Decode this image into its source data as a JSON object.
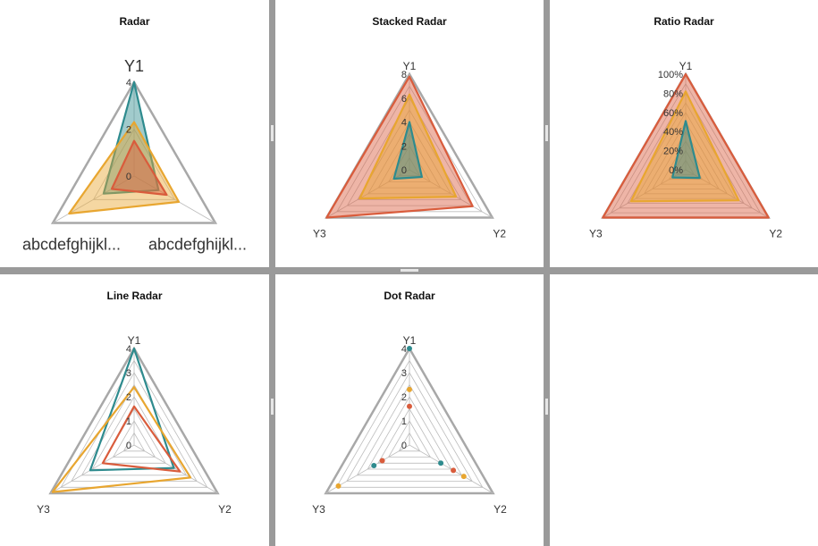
{
  "colors": {
    "teal": "#2e8b8e",
    "orange": "#e8a630",
    "red": "#d95c3c",
    "grid": "#bdbdbd",
    "outer": "#a8a8a8"
  },
  "chart_data": [
    {
      "type": "radar",
      "variant": "area",
      "title": "Radar",
      "axes": [
        "Y1",
        "abcdefghijkl...",
        "abcdefghijkl..."
      ],
      "ticks": [
        "0",
        "2",
        "4"
      ],
      "rmax": 4,
      "series": [
        {
          "color": "teal",
          "values": [
            4,
            1.2,
            1.5
          ]
        },
        {
          "color": "orange",
          "values": [
            2.3,
            2.2,
            3.2
          ]
        },
        {
          "color": "red",
          "values": [
            1.5,
            1.6,
            1.1
          ]
        }
      ]
    },
    {
      "type": "radar",
      "variant": "stacked",
      "title": "Stacked Radar",
      "axes": [
        "Y1",
        "Y2",
        "Y3"
      ],
      "ticks": [
        "0",
        "2",
        "4",
        "6",
        "8"
      ],
      "rmax": 8,
      "series": [
        {
          "color": "teal",
          "values": [
            4,
            1.2,
            1.5
          ]
        },
        {
          "color": "orange",
          "values": [
            2.3,
            3.3,
            3.3
          ]
        },
        {
          "color": "red",
          "values": [
            1.5,
            1.6,
            3.2
          ]
        }
      ]
    },
    {
      "type": "radar",
      "variant": "ratio",
      "title": "Ratio Radar",
      "axes": [
        "Y1",
        "Y2",
        "Y3"
      ],
      "ticks": [
        "0%",
        "20%",
        "40%",
        "60%",
        "80%",
        "100%"
      ],
      "rmax": 100,
      "series": [
        {
          "color": "teal",
          "values": [
            51,
            17,
            16
          ]
        },
        {
          "color": "orange",
          "values": [
            82,
            64,
            66
          ]
        },
        {
          "color": "red",
          "values": [
            100,
            100,
            100
          ]
        }
      ]
    },
    {
      "type": "radar",
      "variant": "line",
      "title": "Line Radar",
      "axes": [
        "Y1",
        "Y2",
        "Y3"
      ],
      "ticks": [
        "0",
        "1",
        "2",
        "3",
        "4"
      ],
      "rmax": 4,
      "series": [
        {
          "color": "teal",
          "values": [
            4,
            1.9,
            2.1
          ]
        },
        {
          "color": "orange",
          "values": [
            2.4,
            2.7,
            3.9
          ]
        },
        {
          "color": "red",
          "values": [
            1.6,
            2.2,
            1.5
          ]
        }
      ]
    },
    {
      "type": "radar",
      "variant": "dot",
      "title": "Dot Radar",
      "axes": [
        "Y1",
        "Y2",
        "Y3"
      ],
      "ticks": [
        "0",
        "1",
        "2",
        "3",
        "4"
      ],
      "rmax": 4,
      "series": [
        {
          "color": "teal",
          "values": [
            4,
            1.5,
            1.7
          ]
        },
        {
          "color": "orange",
          "values": [
            2.3,
            2.6,
            3.4
          ]
        },
        {
          "color": "red",
          "values": [
            1.6,
            2.1,
            1.3
          ]
        }
      ]
    }
  ]
}
